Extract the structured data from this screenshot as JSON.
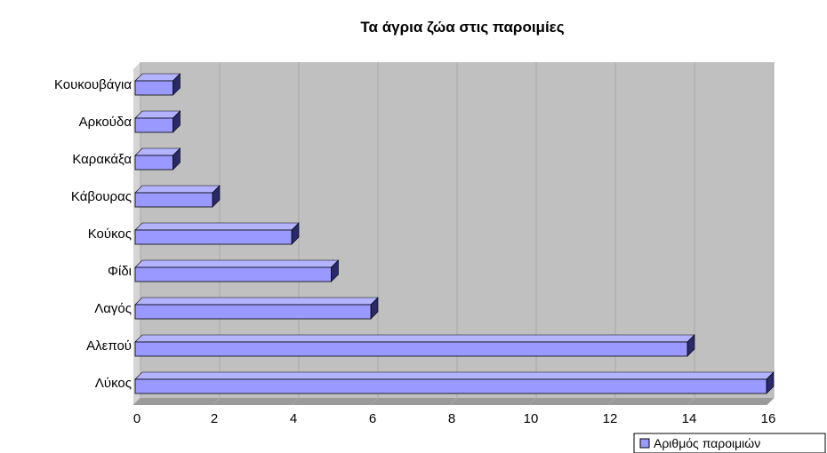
{
  "chart_data": {
    "type": "bar",
    "orientation": "horizontal",
    "title": "Τα άγρια ζώα στις παροιμίες",
    "categories": [
      "Κουκουβάγια",
      "Αρκούδα",
      "Καρακάξα",
      "Κάβουρας",
      "Κούκος",
      "Φίδι",
      "Λαγός",
      "Αλεπού",
      "Λύκος"
    ],
    "series": [
      {
        "name": "Αριθμός παροιμιών",
        "values": [
          1,
          1,
          1,
          2,
          4,
          5,
          6,
          14,
          16
        ]
      }
    ],
    "xlim": [
      0,
      16
    ],
    "x_ticks": [
      "0",
      "2",
      "4",
      "6",
      "8",
      "10",
      "12",
      "14",
      "16"
    ],
    "grid": true,
    "legend_position": "bottom-right",
    "colors": {
      "bar_front": "#9999ff",
      "bar_top": "#b3b3ff",
      "bar_side": "#2a2a66",
      "wall": "#c0c0c0",
      "floor": "#9a9a9a",
      "grid": "#a8a8a8"
    }
  }
}
